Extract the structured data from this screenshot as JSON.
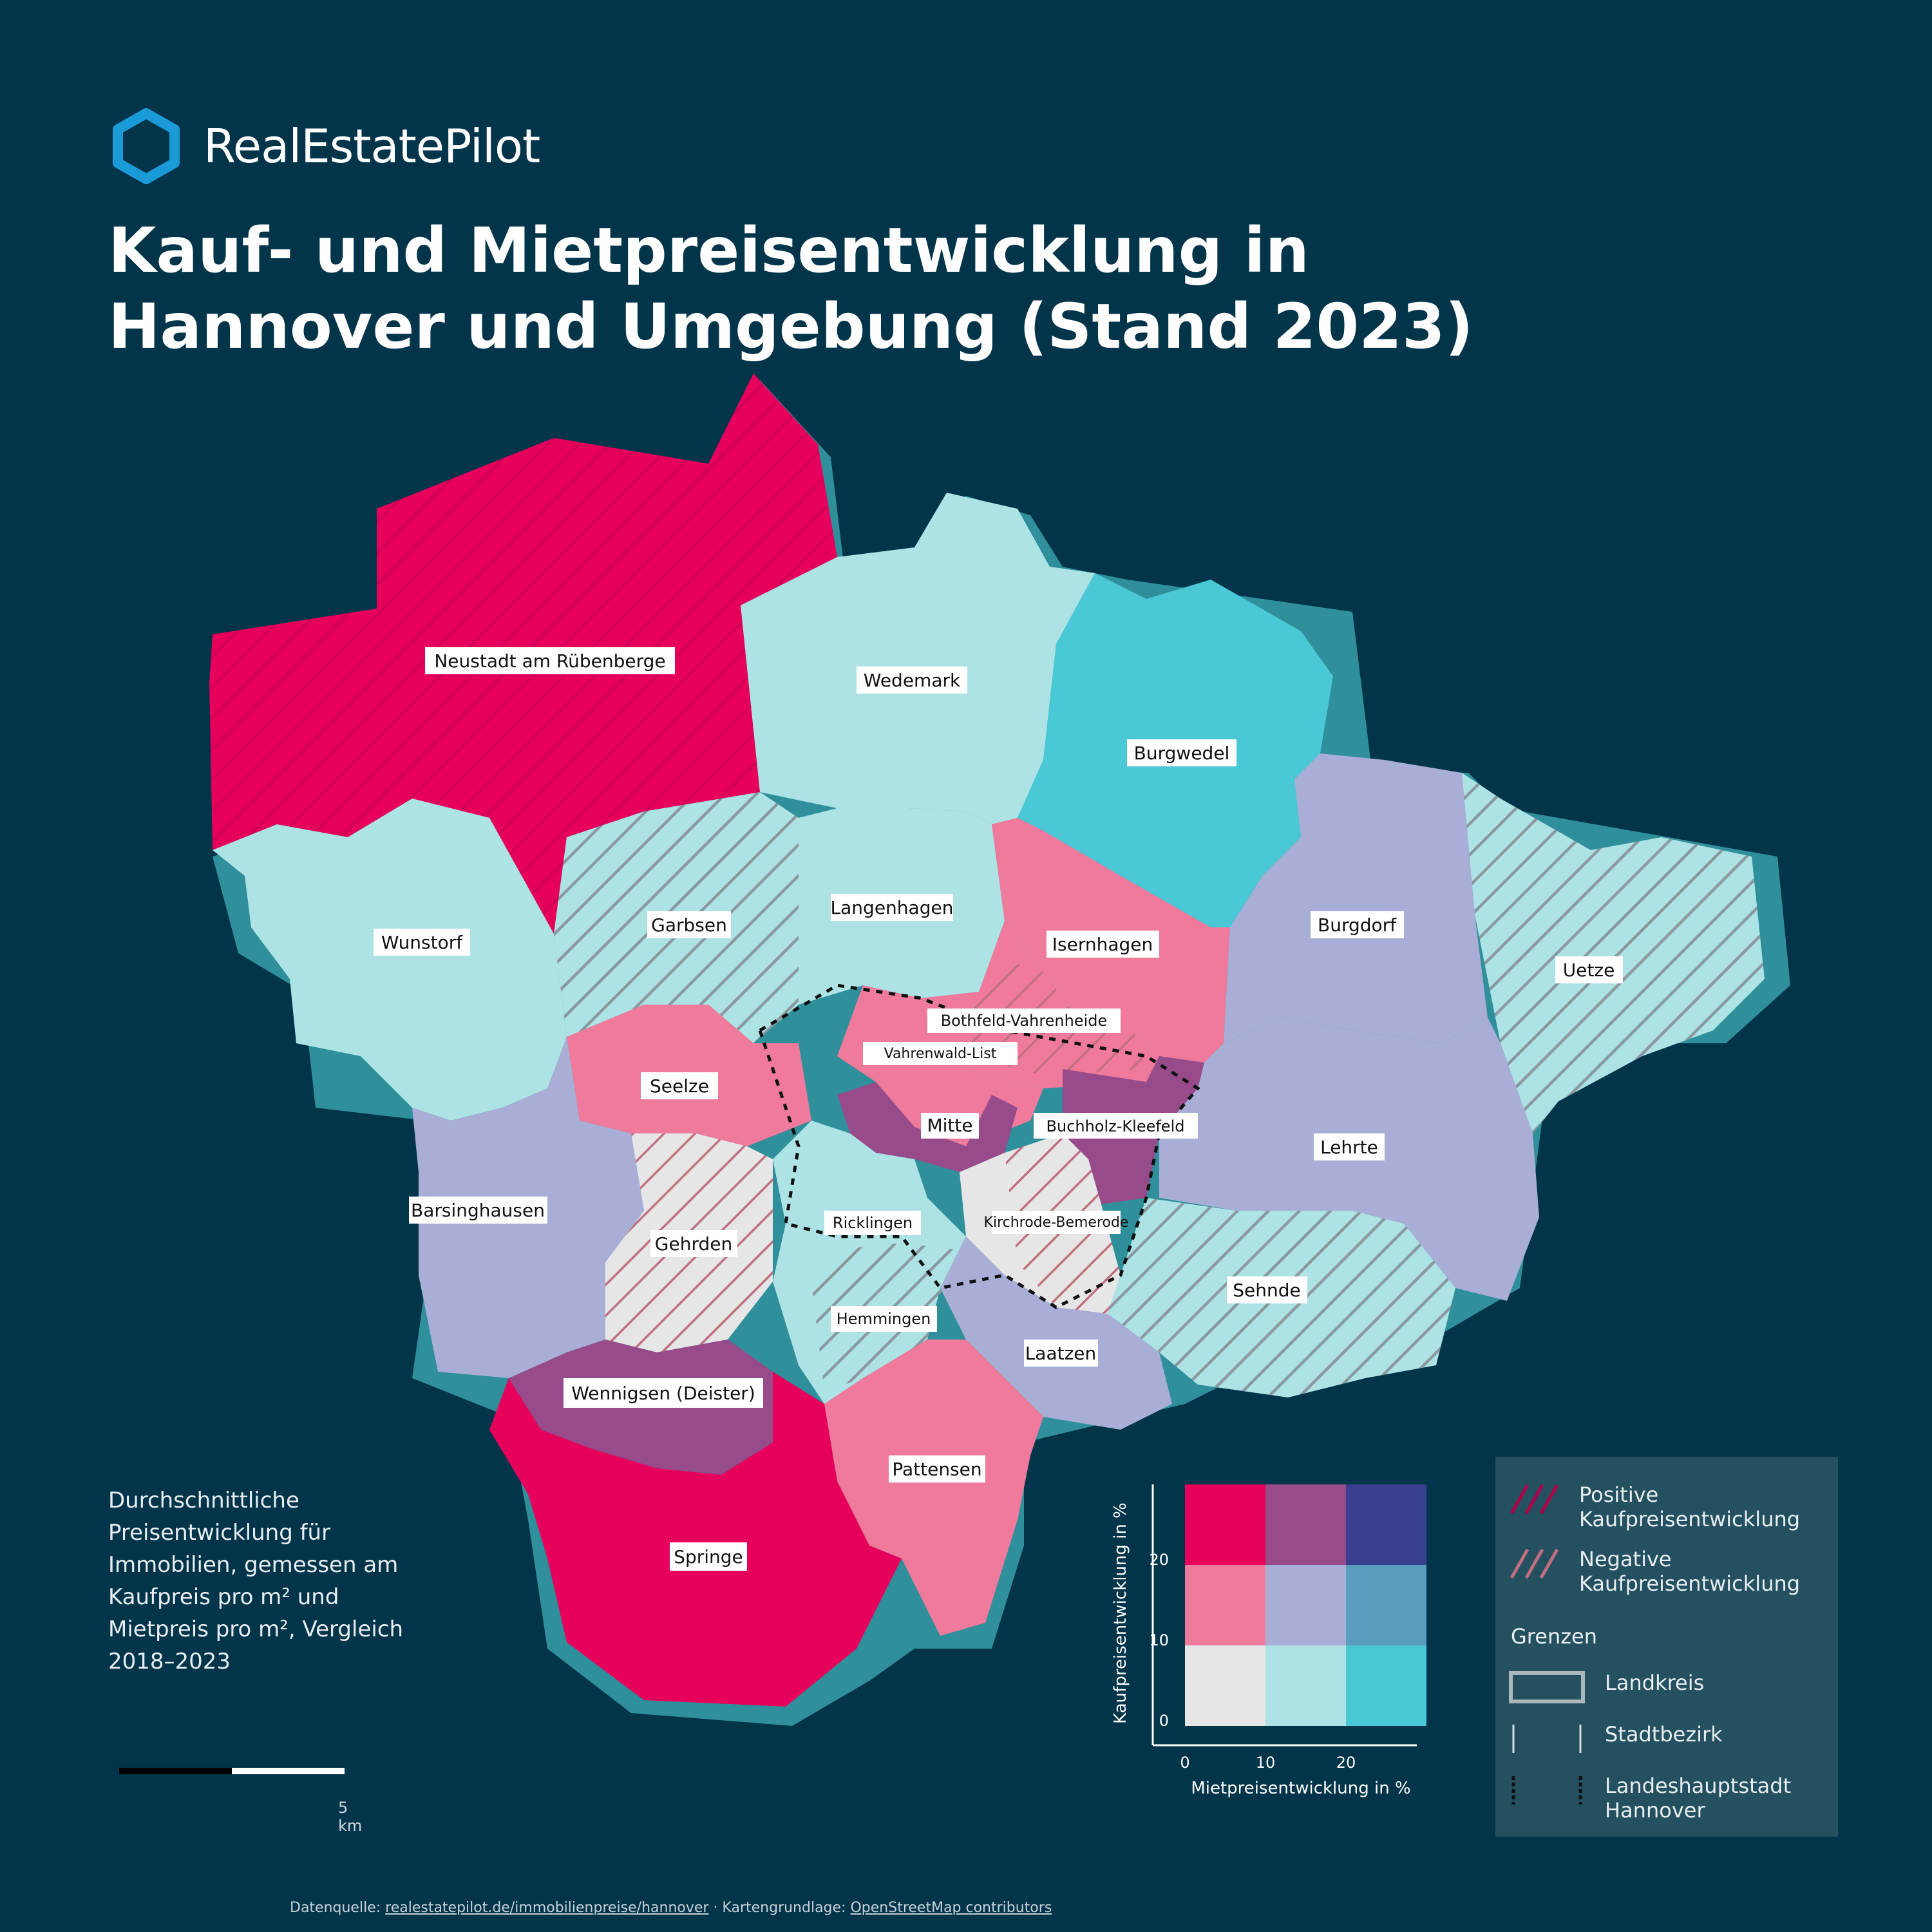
{
  "brand": {
    "name": "RealEstatePilot",
    "accent": "#1a9ad6"
  },
  "title": "Kauf- und Mietpreisentwicklung in Hannover und Umgebung (Stand 2023)",
  "description": "Durchschnittliche Preisentwicklung für Immobilien, gemessen am Kaufpreis pro m² und Mietpreis pro m², Vergleich 2018–2023",
  "scale_label": "5 km",
  "footer": {
    "prefix": "Datenquelle: ",
    "link1": "realestatepilot.de/immobilienpreise/hannover",
    "middle": " · Kartengrundlage: ",
    "link2": "OpenStreetMap contributors"
  },
  "colors": {
    "background": "#02344a",
    "bivariate": [
      [
        "#e6005c",
        "#974b8a",
        "#3a3f8f"
      ],
      [
        "#f07a9c",
        "#a8aed6",
        "#5a9dbf"
      ],
      [
        "#e6e6e6",
        "#aee3e5",
        "#4ac8d6"
      ]
    ]
  },
  "regions": [
    {
      "name": "Neustadt am Rübenberge",
      "fill": "#e6005c",
      "hatch": true
    },
    {
      "name": "Wedemark",
      "fill": "#aee3e5",
      "hatch": false
    },
    {
      "name": "Burgwedel",
      "fill": "#4ac8d6",
      "hatch": false
    },
    {
      "name": "Wunstorf",
      "fill": "#aee3e5",
      "hatch": false
    },
    {
      "name": "Garbsen",
      "fill": "#aee3e5",
      "hatch": true
    },
    {
      "name": "Langenhagen",
      "fill": "#aee3e5",
      "hatch": false
    },
    {
      "name": "Isernhagen",
      "fill": "#f07a9c",
      "hatch": false
    },
    {
      "name": "Burgdorf",
      "fill": "#a8aed6",
      "hatch": false
    },
    {
      "name": "Uetze",
      "fill": "#aee3e5",
      "hatch": true
    },
    {
      "name": "Bothfeld-Vahrenheide",
      "fill": "#f07a9c",
      "hatch": true
    },
    {
      "name": "Seelze",
      "fill": "#f07a9c",
      "hatch": false
    },
    {
      "name": "Vahrenwald-List",
      "fill": "#f07a9c",
      "hatch": false
    },
    {
      "name": "Mitte",
      "fill": "#974b8a",
      "hatch": false
    },
    {
      "name": "Buchholz-Kleefeld",
      "fill": "#974b8a",
      "hatch": false
    },
    {
      "name": "Lehrte",
      "fill": "#a8aed6",
      "hatch": false
    },
    {
      "name": "Barsinghausen",
      "fill": "#a8aed6",
      "hatch": false
    },
    {
      "name": "Gehrden",
      "fill": "#e6e6e6",
      "hatch": true
    },
    {
      "name": "Ricklingen",
      "fill": "#aee3e5",
      "hatch": false
    },
    {
      "name": "Kirchrode-Bemerode",
      "fill": "#e6e6e6",
      "hatch": true
    },
    {
      "name": "Sehnde",
      "fill": "#aee3e5",
      "hatch": true
    },
    {
      "name": "Hemmingen",
      "fill": "#aee3e5",
      "hatch": true
    },
    {
      "name": "Laatzen",
      "fill": "#a8aed6",
      "hatch": false
    },
    {
      "name": "Wennigsen (Deister)",
      "fill": "#974b8a",
      "hatch": false
    },
    {
      "name": "Pattensen",
      "fill": "#f07a9c",
      "hatch": false
    },
    {
      "name": "Springe",
      "fill": "#e6005c",
      "hatch": false
    }
  ],
  "bivariate_legend": {
    "y_label": "Kaufpreisentwicklung in %",
    "y_ticks": [
      "20",
      "10",
      "0"
    ],
    "x_label": "Mietpreisentwicklung in %",
    "x_ticks": [
      "0",
      "10",
      "20"
    ]
  },
  "pattern_legend": {
    "items": [
      {
        "label": "Positive Kaufpreisentwicklung"
      },
      {
        "label": "Negative Kaufpreisentwicklung"
      }
    ],
    "heading": "Grenzen",
    "borders": [
      {
        "label": "Landkreis"
      },
      {
        "label": "Stadtbezirk"
      },
      {
        "label": "Landeshauptstadt Hannover"
      }
    ]
  }
}
